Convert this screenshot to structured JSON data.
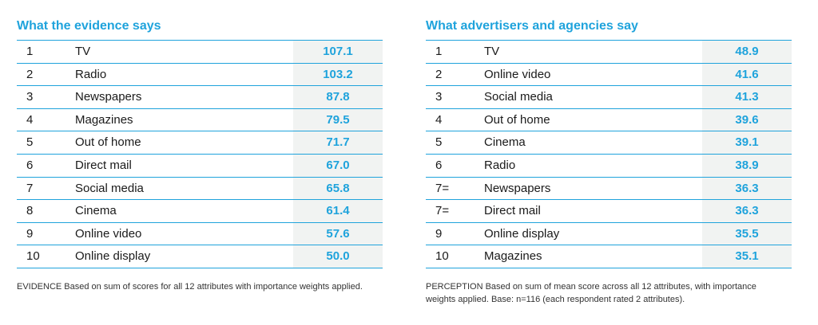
{
  "evidence": {
    "title": "What the evidence says",
    "rows": [
      {
        "rank": "1",
        "name": "TV",
        "score": "107.1"
      },
      {
        "rank": "2",
        "name": "Radio",
        "score": "103.2"
      },
      {
        "rank": "3",
        "name": "Newspapers",
        "score": "87.8"
      },
      {
        "rank": "4",
        "name": "Magazines",
        "score": "79.5"
      },
      {
        "rank": "5",
        "name": "Out of home",
        "score": "71.7"
      },
      {
        "rank": "6",
        "name": "Direct mail",
        "score": "67.0"
      },
      {
        "rank": "7",
        "name": "Social media",
        "score": "65.8"
      },
      {
        "rank": "8",
        "name": "Cinema",
        "score": "61.4"
      },
      {
        "rank": "9",
        "name": "Online video",
        "score": "57.6"
      },
      {
        "rank": "10",
        "name": "Online display",
        "score": "50.0"
      }
    ],
    "note": "EVIDENCE Based on sum of scores for all 12 attributes with importance weights applied."
  },
  "perception": {
    "title": "What advertisers and agencies say",
    "rows": [
      {
        "rank": "1",
        "name": "TV",
        "score": "48.9"
      },
      {
        "rank": "2",
        "name": "Online video",
        "score": "41.6"
      },
      {
        "rank": "3",
        "name": "Social media",
        "score": "41.3"
      },
      {
        "rank": "4",
        "name": "Out of home",
        "score": "39.6"
      },
      {
        "rank": "5",
        "name": "Cinema",
        "score": "39.1"
      },
      {
        "rank": "6",
        "name": "Radio",
        "score": "38.9"
      },
      {
        "rank": "7=",
        "name": "Newspapers",
        "score": "36.3"
      },
      {
        "rank": "7=",
        "name": "Direct mail",
        "score": "36.3"
      },
      {
        "rank": "9",
        "name": "Online display",
        "score": "35.5"
      },
      {
        "rank": "10",
        "name": "Magazines",
        "score": "35.1"
      }
    ],
    "note": "PERCEPTION Based on sum of mean score across all 12 attributes, with importance weights applied.  Base: n=116 (each respondent rated 2 attributes)."
  },
  "colors": {
    "accent": "#1fa3dc",
    "score_bg": "#f1f3f2",
    "text": "#1a1a1a"
  }
}
